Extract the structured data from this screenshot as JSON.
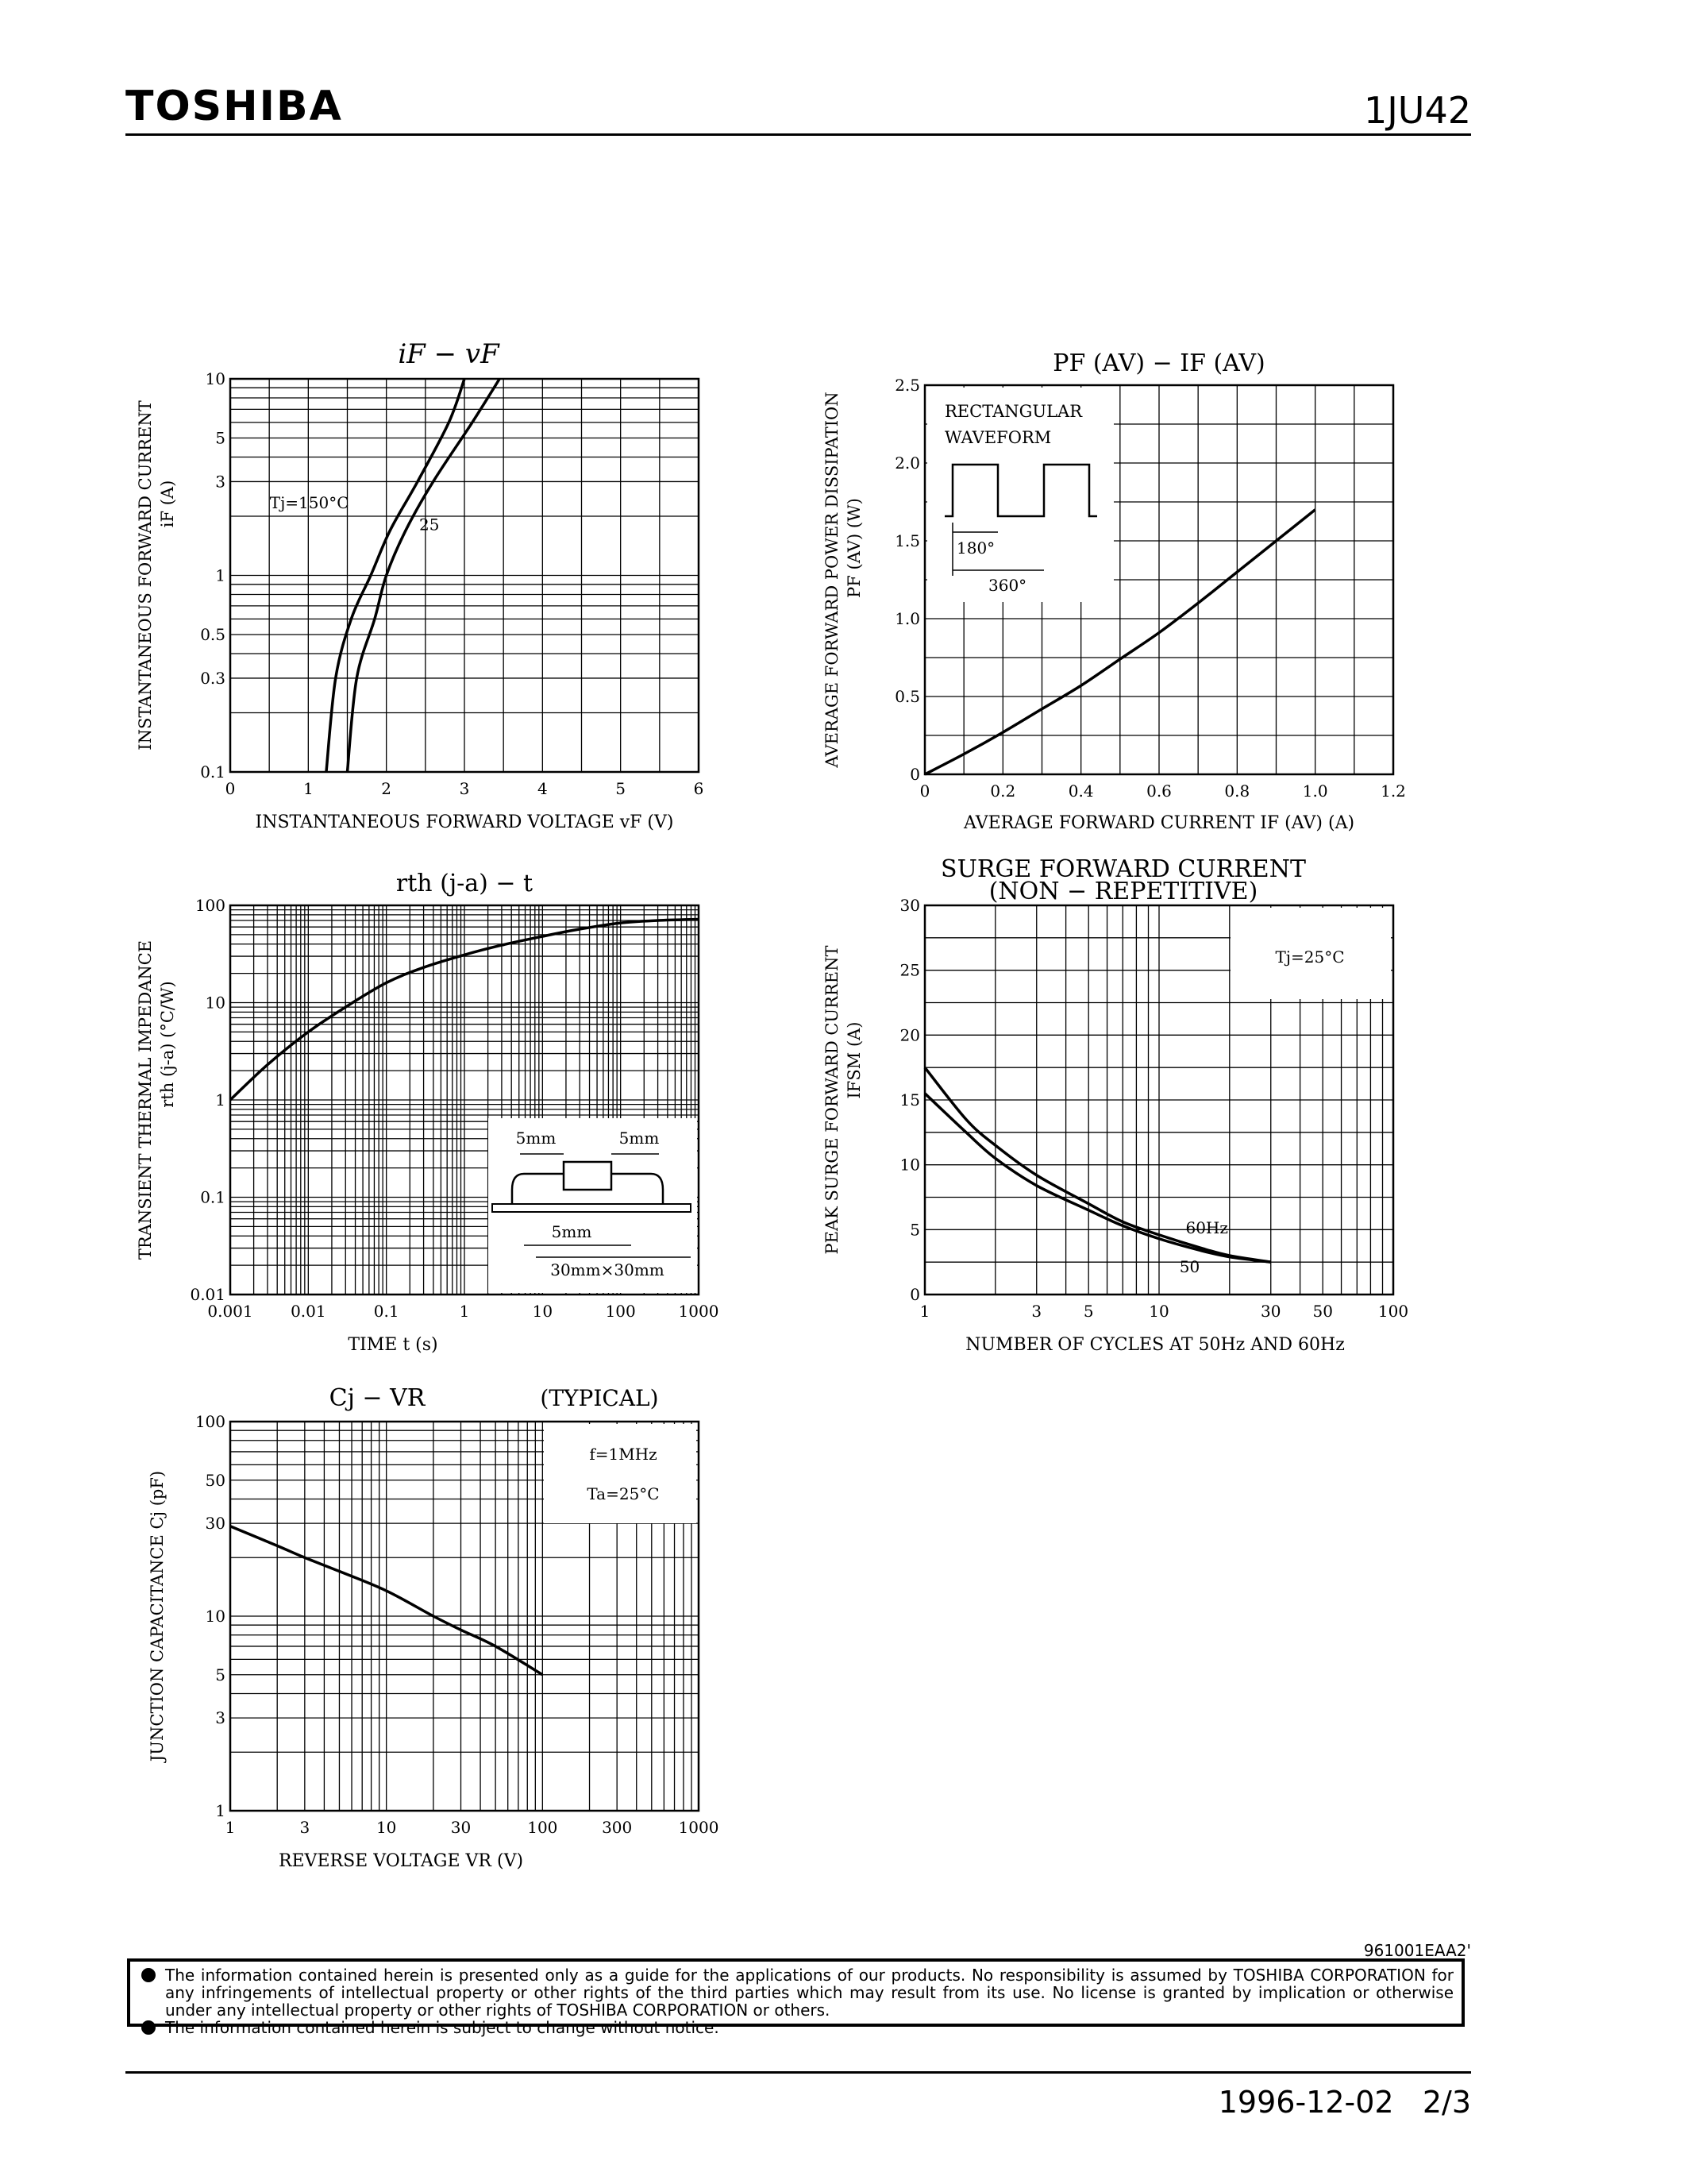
{
  "header": {
    "brand": "TOSHIBA",
    "part_number": "1JU42"
  },
  "chart_data": [
    {
      "id": "if-vf",
      "type": "line",
      "title": "iF − vF",
      "xlabel": "INSTANTANEOUS FORWARD VOLTAGE  vF  (V)",
      "ylabel": "INSTANTANEOUS FORWARD CURRENT",
      "ylabel2": "iF  (A)",
      "xscale": "linear",
      "yscale": "log",
      "xlim": [
        0,
        6
      ],
      "ylim": [
        0.1,
        10
      ],
      "xticks": [
        0,
        1,
        2,
        3,
        4,
        5,
        6
      ],
      "yticks": [
        0.1,
        0.3,
        0.5,
        1,
        3,
        5,
        10
      ],
      "series": [
        {
          "name": "Tj=150°C",
          "x": [
            1.23,
            1.35,
            1.55,
            1.8,
            2.05,
            2.4,
            2.8,
            3.0
          ],
          "y": [
            0.1,
            0.3,
            0.6,
            1.0,
            1.7,
            3.0,
            6.0,
            10.0
          ]
        },
        {
          "name": "25",
          "x": [
            1.5,
            1.62,
            1.85,
            2.0,
            2.25,
            2.6,
            3.1,
            3.45
          ],
          "y": [
            0.1,
            0.3,
            0.6,
            1.0,
            1.7,
            3.0,
            6.0,
            10.0
          ]
        }
      ],
      "annotations": [
        {
          "text": "Tj=150°C"
        },
        {
          "text": "25"
        }
      ]
    },
    {
      "id": "pf-if",
      "type": "line",
      "title": "PF (AV) − IF (AV)",
      "xlabel": "AVERAGE FORWARD CURRENT   IF (AV)   (A)",
      "ylabel": "AVERAGE FORWARD POWER DISSIPATION",
      "ylabel2": "PF (AV)   (W)",
      "xscale": "linear",
      "yscale": "linear",
      "xlim": [
        0,
        1.2
      ],
      "ylim": [
        0,
        2.5
      ],
      "xticks": [
        "0",
        "0.2",
        "0.4",
        "0.6",
        "0.8",
        "1.0",
        "1.2"
      ],
      "yticks": [
        "0",
        "0.5",
        "1.0",
        "1.5",
        "2.0",
        "2.5"
      ],
      "series": [
        {
          "name": "",
          "x": [
            0,
            0.1,
            0.2,
            0.3,
            0.4,
            0.5,
            0.6,
            0.7,
            0.8,
            0.9,
            1.0
          ],
          "y": [
            0,
            0.13,
            0.27,
            0.42,
            0.57,
            0.74,
            0.91,
            1.1,
            1.3,
            1.5,
            1.7
          ]
        }
      ],
      "inset": {
        "line1": "RECTANGULAR",
        "line2": "WAVEFORM",
        "angle1": "180°",
        "angle2": "360°"
      }
    },
    {
      "id": "rth-t",
      "type": "line",
      "title": "rth (j-a)  −  t",
      "xlabel": "TIME   t   (s)",
      "ylabel": "TRANSIENT THERMAL IMPEDANCE",
      "ylabel2": "rth (j-a)   (°C/W)",
      "xscale": "log",
      "yscale": "log",
      "xlim": [
        0.001,
        1000
      ],
      "ylim": [
        0.01,
        100
      ],
      "xticks": [
        "0.001",
        "0.01",
        "0.1",
        "1",
        "10",
        "100",
        "1000"
      ],
      "yticks": [
        "0.01",
        "0.1",
        "1",
        "10",
        "100"
      ],
      "series": [
        {
          "name": "",
          "x": [
            0.001,
            0.003,
            0.01,
            0.03,
            0.1,
            0.3,
            1,
            3,
            10,
            30,
            100,
            300,
            1000
          ],
          "y": [
            1.0,
            2.3,
            5.0,
            9.0,
            16,
            23,
            31,
            39,
            48,
            57,
            66,
            70,
            72
          ]
        }
      ],
      "inset": {
        "dim1": "5mm",
        "dim2": "5mm",
        "dim3": "5mm",
        "board": "30mm×30mm"
      }
    },
    {
      "id": "ifsm-n",
      "type": "line",
      "title": "SURGE FORWARD CURRENT",
      "subtitle": "(NON − REPETITIVE)",
      "xlabel": "NUMBER OF CYCLES AT 50Hz AND 60Hz",
      "ylabel": "PEAK SURGE FORWARD CURRENT",
      "ylabel2": "IFSM   (A)",
      "xscale": "log",
      "yscale": "linear",
      "xlim": [
        1,
        100
      ],
      "ylim": [
        0,
        30
      ],
      "xticks": [
        "1",
        "3",
        "5",
        "10",
        "30",
        "50",
        "100"
      ],
      "yticks": [
        "0",
        "5",
        "10",
        "15",
        "20",
        "25",
        "30"
      ],
      "series": [
        {
          "name": "60Hz",
          "x": [
            1,
            1.5,
            2,
            3,
            5,
            7,
            10,
            15,
            20,
            30
          ],
          "y": [
            17.5,
            13.5,
            11.5,
            9.2,
            7.0,
            5.6,
            4.6,
            3.6,
            3.0,
            2.5
          ]
        },
        {
          "name": "50",
          "x": [
            1,
            1.5,
            2,
            3,
            5,
            7,
            10,
            15,
            20,
            30
          ],
          "y": [
            15.5,
            12.5,
            10.5,
            8.4,
            6.5,
            5.3,
            4.3,
            3.4,
            2.9,
            2.5
          ]
        }
      ],
      "annotations": [
        {
          "text": "Tj=25°C"
        },
        {
          "text": "60Hz"
        },
        {
          "text": "50"
        }
      ]
    },
    {
      "id": "cj-vr",
      "type": "line",
      "title": "Cj  −  VR",
      "subtitle": "(TYPICAL)",
      "xlabel": "REVERSE VOLTAGE   VR   (V)",
      "ylabel": "JUNCTION CAPACITANCE   Cj   (pF)",
      "xscale": "log",
      "yscale": "log",
      "xlim": [
        1,
        1000
      ],
      "ylim": [
        1,
        100
      ],
      "xticks": [
        "1",
        "3",
        "10",
        "30",
        "100",
        "300",
        "1000"
      ],
      "yticks": [
        "1",
        "3",
        "5",
        "10",
        "30",
        "50",
        "100"
      ],
      "series": [
        {
          "name": "",
          "x": [
            1,
            2,
            3,
            5,
            10,
            20,
            30,
            50,
            100
          ],
          "y": [
            29,
            23,
            20,
            17,
            13.5,
            10,
            8.5,
            7,
            5
          ]
        }
      ],
      "annotations": [
        {
          "text": "f=1MHz"
        },
        {
          "text": "Ta=25°C"
        }
      ]
    }
  ],
  "footer": {
    "doc_id": "961001EAA2'",
    "disclaimer_1": "The information contained herein is presented only as a guide for the applications of our products. No responsibility is assumed by TOSHIBA CORPORATION for any infringements of intellectual property or other rights of the third parties which may result from its use. No license is granted by implication or otherwise under any intellectual property or other rights of TOSHIBA CORPORATION or others.",
    "disclaimer_2": "The information contained herein is subject to change without notice.",
    "date": "1996-12-02",
    "page": "2/3"
  }
}
